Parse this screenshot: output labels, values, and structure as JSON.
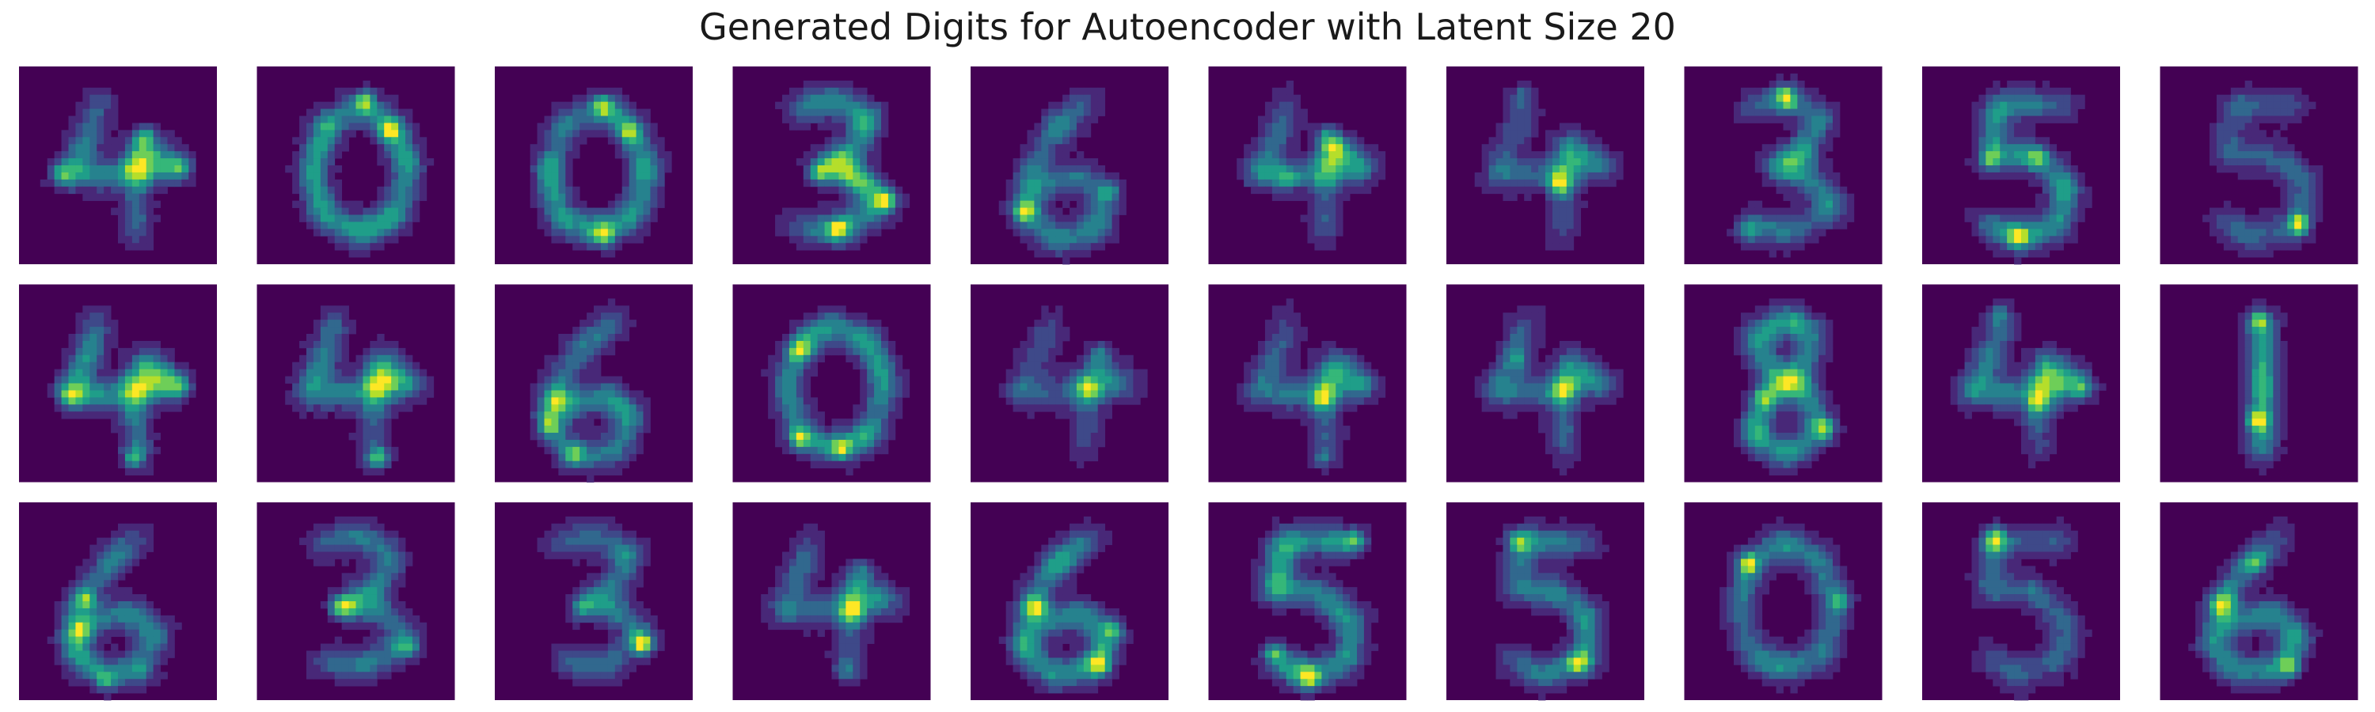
{
  "chart_data": {
    "type": "heatmap",
    "title": "Generated Digits for Autoencoder with Latent Size 20",
    "rows": 3,
    "columns": 10,
    "image_resolution": "28x28",
    "colormap": "viridis",
    "colormap_colors": [
      "#440154",
      "#482878",
      "#3e4989",
      "#31688e",
      "#26828e",
      "#1f9e89",
      "#35b779",
      "#6ece58",
      "#b5de2b",
      "#fde725"
    ],
    "axes_visible": false,
    "grid": false,
    "samples": [
      {
        "row": 1,
        "col": 1,
        "shape": "4"
      },
      {
        "row": 1,
        "col": 2,
        "shape": "0"
      },
      {
        "row": 1,
        "col": 3,
        "shape": "0"
      },
      {
        "row": 1,
        "col": 4,
        "shape": "3"
      },
      {
        "row": 1,
        "col": 5,
        "shape": "6"
      },
      {
        "row": 1,
        "col": 6,
        "shape": "4"
      },
      {
        "row": 1,
        "col": 7,
        "shape": "4"
      },
      {
        "row": 1,
        "col": 8,
        "shape": "3"
      },
      {
        "row": 1,
        "col": 9,
        "shape": "5"
      },
      {
        "row": 1,
        "col": 10,
        "shape": "5"
      },
      {
        "row": 2,
        "col": 1,
        "shape": "4"
      },
      {
        "row": 2,
        "col": 2,
        "shape": "4"
      },
      {
        "row": 2,
        "col": 3,
        "shape": "6"
      },
      {
        "row": 2,
        "col": 4,
        "shape": "0"
      },
      {
        "row": 2,
        "col": 5,
        "shape": "4"
      },
      {
        "row": 2,
        "col": 6,
        "shape": "4"
      },
      {
        "row": 2,
        "col": 7,
        "shape": "4"
      },
      {
        "row": 2,
        "col": 8,
        "shape": "8"
      },
      {
        "row": 2,
        "col": 9,
        "shape": "4"
      },
      {
        "row": 2,
        "col": 10,
        "shape": "1"
      },
      {
        "row": 3,
        "col": 1,
        "shape": "6"
      },
      {
        "row": 3,
        "col": 2,
        "shape": "3"
      },
      {
        "row": 3,
        "col": 3,
        "shape": "3"
      },
      {
        "row": 3,
        "col": 4,
        "shape": "4"
      },
      {
        "row": 3,
        "col": 5,
        "shape": "6"
      },
      {
        "row": 3,
        "col": 6,
        "shape": "5"
      },
      {
        "row": 3,
        "col": 7,
        "shape": "5"
      },
      {
        "row": 3,
        "col": 8,
        "shape": "0"
      },
      {
        "row": 3,
        "col": 9,
        "shape": "5"
      },
      {
        "row": 3,
        "col": 10,
        "shape": "6"
      }
    ]
  }
}
